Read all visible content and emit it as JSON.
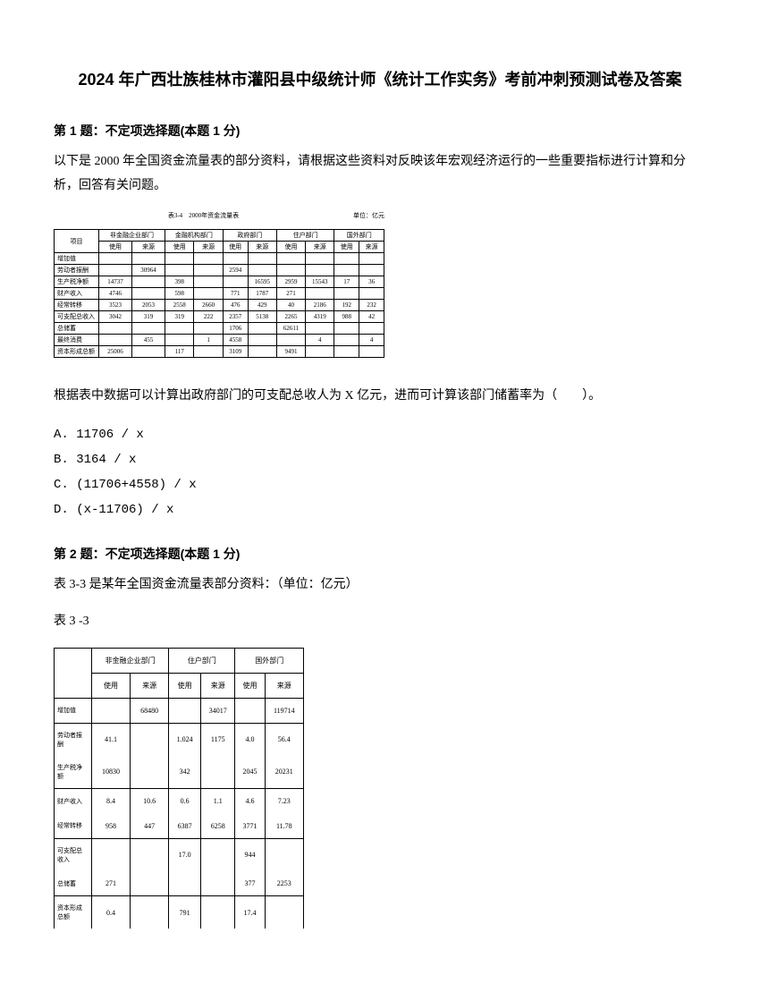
{
  "title": "2024 年广西壮族桂林市灌阳县中级统计师《统计工作实务》考前冲刺预测试卷及答案",
  "q1": {
    "header": "第 1 题：不定项选择题(本题 1 分)",
    "intro": "以下是 2000 年全国资金流量表的部分资料，请根据这些资料对反映该年宏观经济运行的一些重要指标进行计算和分析，回答有关问题。",
    "table_caption": "表3-4　2000年资金流量表",
    "table_unit": "单位：亿元",
    "col_groups": [
      "项目",
      "非金融企业部门",
      "金融机构部门",
      "政府部门",
      "住户部门",
      "国外部门"
    ],
    "sub_cols": [
      "使用",
      "来源",
      "使用",
      "来源",
      "使用",
      "来源",
      "使用",
      "来源",
      "使用",
      "来源"
    ],
    "rows": [
      {
        "label": "增加值",
        "cells": [
          "",
          "",
          "",
          "",
          "",
          "",
          "",
          "",
          "",
          ""
        ]
      },
      {
        "label": "劳动者报酬",
        "cells": [
          "",
          "30964",
          "",
          "",
          "2594",
          "",
          "",
          "",
          "",
          ""
        ]
      },
      {
        "label": "生产税净额",
        "cells": [
          "14737",
          "",
          "398",
          "",
          "",
          "16595",
          "2959",
          "15543",
          "17",
          "36"
        ]
      },
      {
        "label": "财产收入",
        "cells": [
          "4746",
          "",
          "598",
          "",
          "771",
          "1787",
          "271",
          "",
          "",
          ""
        ]
      },
      {
        "label": "经常转移",
        "cells": [
          "3523",
          "2053",
          "2558",
          "2660",
          "476",
          "429",
          "40",
          "2186",
          "192",
          "232"
        ]
      },
      {
        "label": "可支配总收入",
        "cells": [
          "3042",
          "319",
          "319",
          "222",
          "2357",
          "5138",
          "2265",
          "4319",
          "988",
          "42"
        ]
      },
      {
        "label": "总储蓄",
        "cells": [
          "",
          "",
          "",
          "",
          "1706",
          "",
          "62611",
          "",
          "",
          ""
        ]
      },
      {
        "label": "最终消费",
        "cells": [
          "",
          "455",
          "",
          "1",
          "4558",
          "",
          "",
          "4",
          "",
          "4"
        ]
      },
      {
        "label": "资本形成总额",
        "cells": [
          "25006",
          "",
          "117",
          "",
          "3109",
          "",
          "9491",
          "",
          "",
          ""
        ]
      }
    ],
    "q_text": "根据表中数据可以计算出政府部门的可支配总收人为 X 亿元，进而可计算该部门储蓄率为（　　）。",
    "opt_a": "A. 11706 / x",
    "opt_b": "B. 3164 / x",
    "opt_c": "C. (11706+4558) / x",
    "opt_d": "D. (x-11706) / x"
  },
  "q2": {
    "header": "第 2 题：不定项选择题(本题 1 分)",
    "intro1": "表 3-3 是某年全国资金流量表部分资料：（单位：亿元）",
    "intro2": "表 3 -3",
    "col_groups": [
      "",
      "非金融企业部门",
      "住户部门",
      "国外部门"
    ],
    "sub_cols": [
      "",
      "使用",
      "来源",
      "使用",
      "来源",
      "使用",
      "来源"
    ],
    "rows": [
      {
        "label": "增加值",
        "cells": [
          "",
          "68480",
          "",
          "34017",
          "",
          "119714"
        ],
        "divider": true
      },
      {
        "label": "劳动者报酬",
        "cells": [
          "41.1",
          "",
          "1.024",
          "1175",
          "4.0",
          "56.4"
        ],
        "divider": false
      },
      {
        "label": "生产税净额",
        "cells": [
          "10830",
          "",
          "342",
          "",
          "2045",
          "20231"
        ],
        "divider": true
      },
      {
        "label": "财产收入",
        "cells": [
          "8.4",
          "10.6",
          "0.6",
          "1.1",
          "4.6",
          "7.23"
        ],
        "divider": false
      },
      {
        "label": "经常转移",
        "cells": [
          "958",
          "447",
          "6387",
          "6258",
          "3771",
          "11.78"
        ],
        "divider": true
      },
      {
        "label": "可支配总收入",
        "cells": [
          "",
          "",
          "17.0",
          "",
          "944",
          ""
        ],
        "divider": false
      },
      {
        "label": "总储蓄",
        "cells": [
          "271",
          "",
          "",
          "",
          "377",
          "2253"
        ],
        "divider": true
      },
      {
        "label": "资本形成总额",
        "cells": [
          "0.4",
          "",
          "791",
          "",
          "17.4",
          ""
        ],
        "divider": false
      }
    ]
  }
}
